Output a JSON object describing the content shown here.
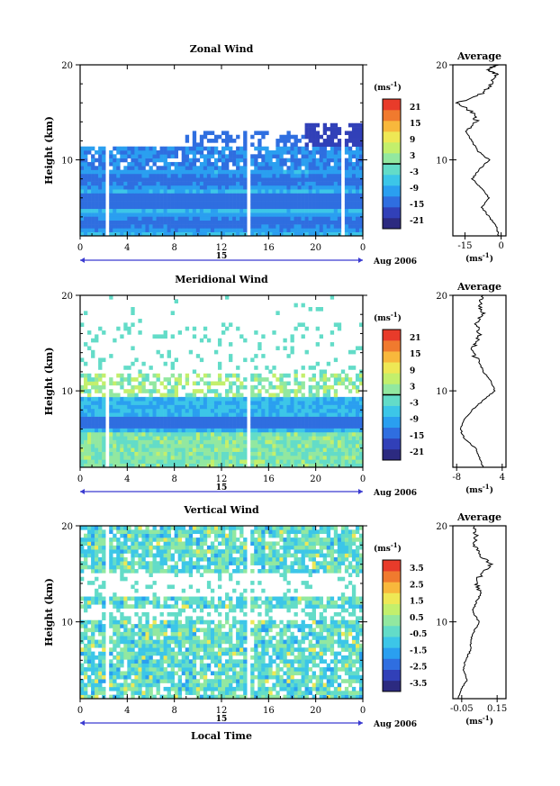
{
  "chart_data": [
    {
      "type": "heatmap",
      "title": "Zonal Wind",
      "ylabel": "Height (km)",
      "ylim": [
        2,
        20
      ],
      "xlim": [
        0,
        24
      ],
      "yticks": [
        "10",
        "20"
      ],
      "xticks": [
        "0",
        "4",
        "8",
        "12",
        "16",
        "20",
        "0"
      ],
      "date_marker": "15",
      "date_label": "Aug 2006",
      "colorbar": {
        "unit": "(ms",
        "unit_exp": "-1",
        "unit_close": ")",
        "ticks": [
          "21",
          "15",
          "9",
          "3",
          "-3",
          "-9",
          "-15",
          "-21"
        ],
        "range": [
          -24,
          24
        ],
        "zero_line": true
      },
      "average_profile": {
        "title": "Average",
        "xticks": [
          "-15",
          "0"
        ],
        "xlim": [
          -20,
          2
        ],
        "xlabel": "(ms",
        "xlabel_exp": "-1",
        "xlabel_close": ")",
        "height": [
          2,
          3,
          4,
          5,
          6,
          7,
          8,
          9,
          10,
          11,
          12,
          13,
          14,
          15,
          16,
          17,
          18,
          19,
          19.5,
          20
        ],
        "values": [
          -1,
          -2,
          -5,
          -8,
          -5,
          -8,
          -12,
          -9,
          -5,
          -10,
          -12,
          -15,
          -10,
          -12,
          -18,
          -8,
          -4,
          -2,
          -6,
          -1
        ]
      }
    },
    {
      "type": "heatmap",
      "title": "Meridional Wind",
      "ylabel": "Height (km)",
      "ylim": [
        2,
        20
      ],
      "xlim": [
        0,
        24
      ],
      "yticks": [
        "10",
        "20"
      ],
      "xticks": [
        "0",
        "4",
        "8",
        "12",
        "16",
        "20",
        "0"
      ],
      "date_marker": "15",
      "date_label": "Aug 2006",
      "colorbar": {
        "unit": "(ms",
        "unit_exp": "-1",
        "unit_close": ")",
        "ticks": [
          "21",
          "15",
          "9",
          "3",
          "-3",
          "-9",
          "-15",
          "-21"
        ],
        "range": [
          -24,
          24
        ],
        "zero_line": true
      },
      "average_profile": {
        "title": "Average",
        "xticks": [
          "-8",
          "4"
        ],
        "xlim": [
          -9,
          5
        ],
        "xlabel": "(ms",
        "xlabel_exp": "-1",
        "xlabel_close": ")",
        "height": [
          2,
          3,
          4,
          5,
          6,
          7,
          8,
          9,
          10,
          11,
          12,
          13,
          14,
          15,
          16,
          17,
          18,
          19,
          20
        ],
        "values": [
          -1,
          -2,
          -3,
          -6,
          -7,
          -6,
          -4,
          -1,
          2,
          1,
          -1,
          -2,
          -4,
          -3,
          -2,
          -3,
          -1,
          -2,
          -1
        ]
      }
    },
    {
      "type": "heatmap",
      "title": "Vertical Wind",
      "ylabel": "Height (km)",
      "xlabel": "Local Time",
      "ylim": [
        2,
        20
      ],
      "xlim": [
        0,
        24
      ],
      "yticks": [
        "10",
        "20"
      ],
      "xticks": [
        "0",
        "4",
        "8",
        "12",
        "16",
        "20",
        "0"
      ],
      "date_marker": "15",
      "date_label": "Aug 2006",
      "colorbar": {
        "unit": "(ms",
        "unit_exp": "-1",
        "unit_close": ")",
        "ticks": [
          "3.5",
          "2.5",
          "1.5",
          "0.5",
          "-0.5",
          "-1.5",
          "-2.5",
          "-3.5"
        ],
        "range": [
          -4,
          4
        ],
        "zero_line": false
      },
      "average_profile": {
        "title": "Average",
        "xticks": [
          "-0.05",
          "0.15"
        ],
        "xlim": [
          -0.1,
          0.2
        ],
        "xlabel": "(ms",
        "xlabel_exp": "-1",
        "xlabel_close": ")",
        "height": [
          2,
          3,
          4,
          5,
          6,
          7,
          8,
          9,
          10,
          11,
          12,
          13,
          14,
          15,
          16,
          17,
          18,
          19,
          20
        ],
        "values": [
          -0.07,
          -0.05,
          -0.02,
          -0.04,
          -0.03,
          0.0,
          0.0,
          0.02,
          0.05,
          0.01,
          0.03,
          0.06,
          0.03,
          0.06,
          0.12,
          0.05,
          0.02,
          0.03,
          0.02
        ]
      }
    }
  ]
}
